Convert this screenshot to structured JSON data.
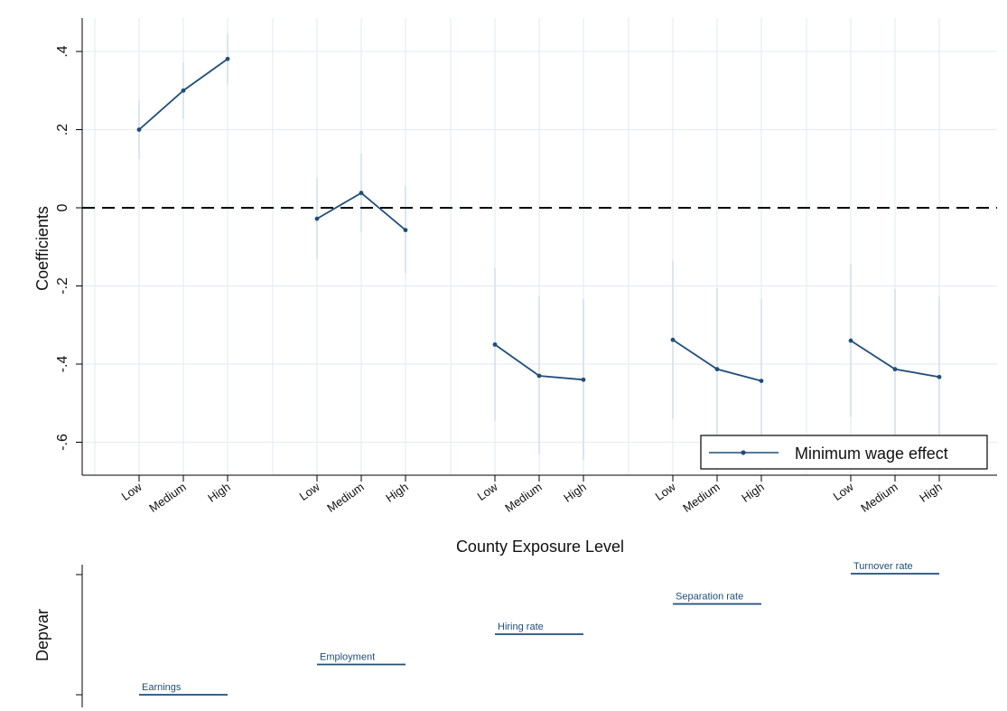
{
  "colors": {
    "series": "#1f4e79",
    "ci": "#d9e3ec",
    "grid": "#e6edf2",
    "zero_line": "#000000"
  },
  "chart_data": [
    {
      "type": "line",
      "title": "",
      "xlabel": "County Exposure Level",
      "ylabel": "Coefficients",
      "ylim": [
        -0.68,
        0.48
      ],
      "yticks": [
        0.4,
        0.2,
        0,
        -0.2,
        -0.4,
        -0.6
      ],
      "ytick_labels": [
        ".4",
        ".2",
        "0",
        "-.2",
        "-.4",
        "-.6"
      ],
      "grid": true,
      "reference_line": 0,
      "categories": [
        "Low",
        "Medium",
        "High"
      ],
      "legend": {
        "label": "Minimum wage effect",
        "position": "bottom-right"
      },
      "groups": [
        {
          "values": [
            0.2,
            0.3,
            0.381
          ],
          "ci_low": [
            0.125,
            0.228,
            0.316
          ],
          "ci_high": [
            0.275,
            0.372,
            0.446
          ]
        },
        {
          "values": [
            -0.028,
            0.038,
            -0.057
          ],
          "ci_low": [
            -0.132,
            -0.063,
            -0.167
          ],
          "ci_high": [
            0.076,
            0.139,
            0.055
          ]
        },
        {
          "values": [
            -0.35,
            -0.43,
            -0.44
          ],
          "ci_low": [
            -0.545,
            -0.63,
            -0.645
          ],
          "ci_high": [
            -0.155,
            -0.225,
            -0.233
          ]
        },
        {
          "values": [
            -0.338,
            -0.413,
            -0.443
          ],
          "ci_low": [
            -0.54,
            -0.62,
            -0.65
          ],
          "ci_high": [
            -0.135,
            -0.205,
            -0.233
          ]
        },
        {
          "values": [
            -0.34,
            -0.413,
            -0.433
          ],
          "ci_low": [
            -0.535,
            -0.62,
            -0.64
          ],
          "ci_high": [
            -0.143,
            -0.208,
            -0.227
          ]
        }
      ]
    },
    {
      "type": "line",
      "ylabel": "Depvar",
      "segments": [
        {
          "label": "Earnings",
          "level": 1
        },
        {
          "label": "Employment",
          "level": 2
        },
        {
          "label": "Hiring rate",
          "level": 3
        },
        {
          "label": "Separation rate",
          "level": 4
        },
        {
          "label": "Turnover rate",
          "level": 5
        }
      ]
    }
  ]
}
